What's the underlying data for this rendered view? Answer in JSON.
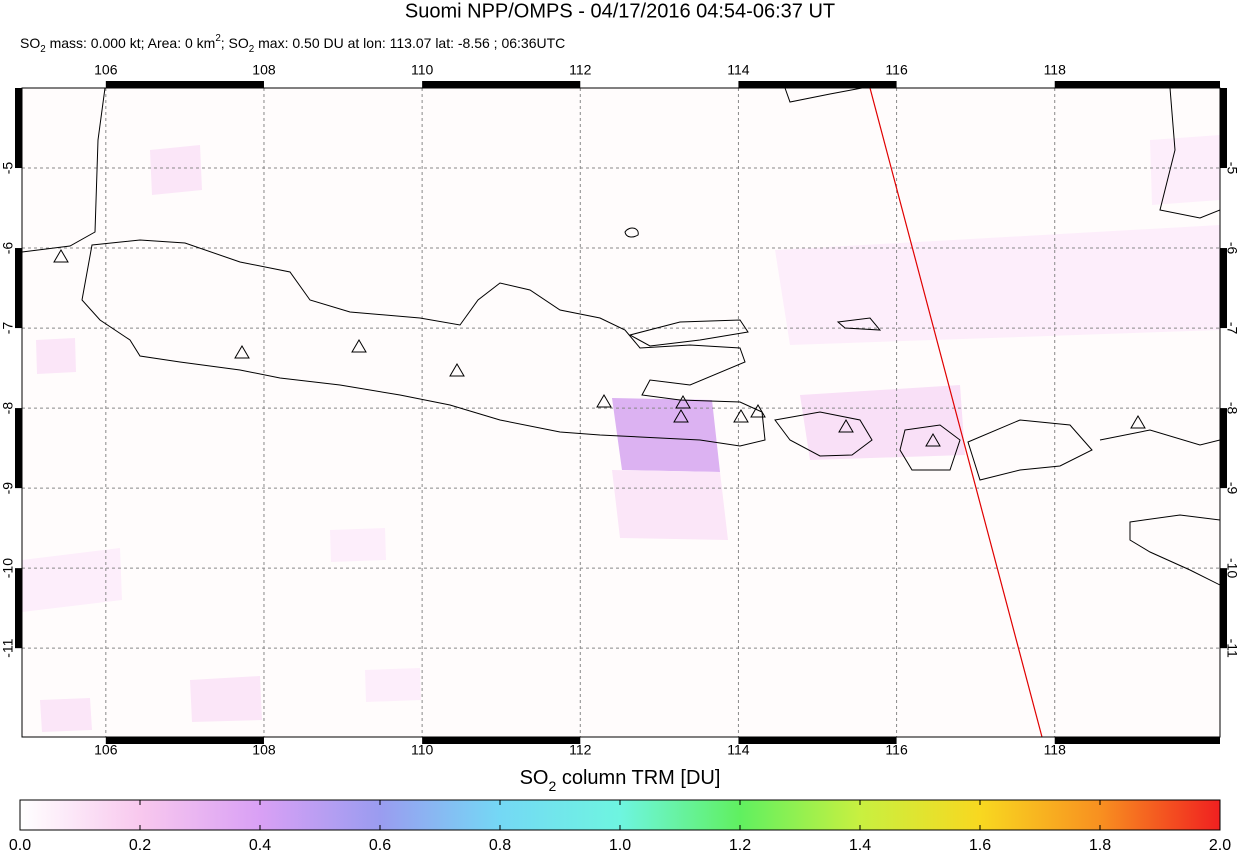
{
  "chart_data": {
    "type": "map",
    "title": "Suomi NPP/OMPS - 04/17/2016 04:54-06:37 UT",
    "subtitle": [
      {
        "text": "SO",
        "shift": "none"
      },
      {
        "text": "2",
        "shift": "sub"
      },
      {
        "text": " mass: 0.000 kt; Area: 0 km",
        "shift": "none"
      },
      {
        "text": "2",
        "shift": "super"
      },
      {
        "text": "; SO",
        "shift": "none"
      },
      {
        "text": "2",
        "shift": "sub"
      },
      {
        "text": " max: 0.50 DU at lon: 113.07 lat: -8.56 ; 06:36UTC",
        "shift": "none"
      }
    ],
    "xlim": [
      104.94,
      120.09
    ],
    "xticks": [
      106,
      108,
      110,
      112,
      114,
      116,
      118
    ],
    "ylim": [
      -12.11,
      -4.0
    ],
    "yticks": [
      -5,
      -6,
      -7,
      -8,
      -9,
      -10,
      -11
    ],
    "grid": true,
    "colorbar": {
      "label": [
        {
          "text": "SO",
          "shift": "none"
        },
        {
          "text": "2",
          "shift": "sub"
        },
        {
          "text": " column TRM [DU]",
          "shift": "none"
        }
      ],
      "lim": [
        0,
        2
      ],
      "ticks": [
        {
          "value": 0,
          "label": "0.0"
        },
        {
          "value": 0.2,
          "label": "0.2"
        },
        {
          "value": 0.4,
          "label": "0.4"
        },
        {
          "value": 0.6,
          "label": "0.6"
        },
        {
          "value": 0.8,
          "label": "0.8"
        },
        {
          "value": 1,
          "label": "1.0"
        },
        {
          "value": 1.2,
          "label": "1.2"
        },
        {
          "value": 1.4,
          "label": "1.4"
        },
        {
          "value": 1.6,
          "label": "1.6"
        },
        {
          "value": 1.8,
          "label": "1.8"
        },
        {
          "value": 2,
          "label": "2.0"
        }
      ],
      "colors": [
        "#ffffff",
        "#f8c8ee",
        "#d9a0f5",
        "#9a9cf0",
        "#74d8f5",
        "#6ef5e0",
        "#60f060",
        "#c8f040",
        "#f8d820",
        "#f89020",
        "#f02020"
      ]
    }
  }
}
